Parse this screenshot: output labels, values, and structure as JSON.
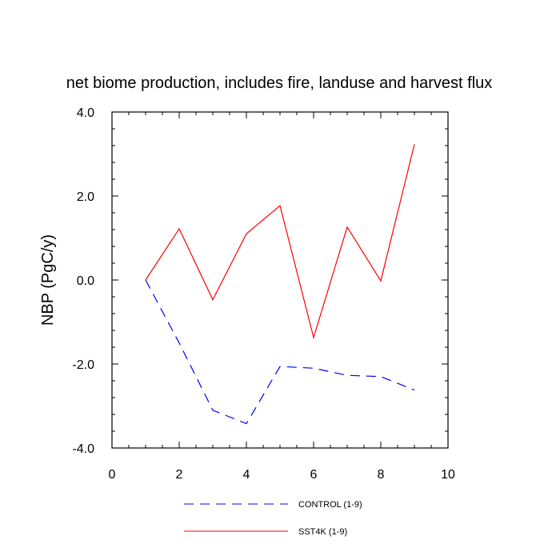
{
  "chart_data": {
    "type": "line",
    "title": "net biome production, includes fire, landuse and harvest flux",
    "xlabel": "",
    "ylabel": "NBP  (PgC/y)",
    "xlim": [
      0,
      10
    ],
    "ylim": [
      -4,
      4
    ],
    "xticks": [
      "0",
      "2",
      "4",
      "6",
      "8",
      "10"
    ],
    "yticks": [
      "4.0",
      "2.0",
      "0.0",
      "-2.0",
      "-4.0"
    ],
    "grid": false,
    "legend_position": "bottom",
    "series": [
      {
        "name": "CONTROL (1-9)",
        "color": "#0000ff",
        "style": "dashed",
        "x": [
          1,
          2,
          3,
          4,
          5,
          6,
          7,
          8,
          9
        ],
        "y": [
          0.0,
          -1.5,
          -3.1,
          -3.42,
          -2.06,
          -2.1,
          -2.27,
          -2.3,
          -2.62
        ]
      },
      {
        "name": "SST4K (1-9)",
        "color": "#ff0000",
        "style": "solid",
        "x": [
          1,
          2,
          3,
          4,
          5,
          6,
          7,
          8,
          9
        ],
        "y": [
          0.0,
          1.22,
          -0.47,
          1.1,
          1.77,
          -1.37,
          1.26,
          -0.02,
          3.23
        ]
      }
    ]
  }
}
